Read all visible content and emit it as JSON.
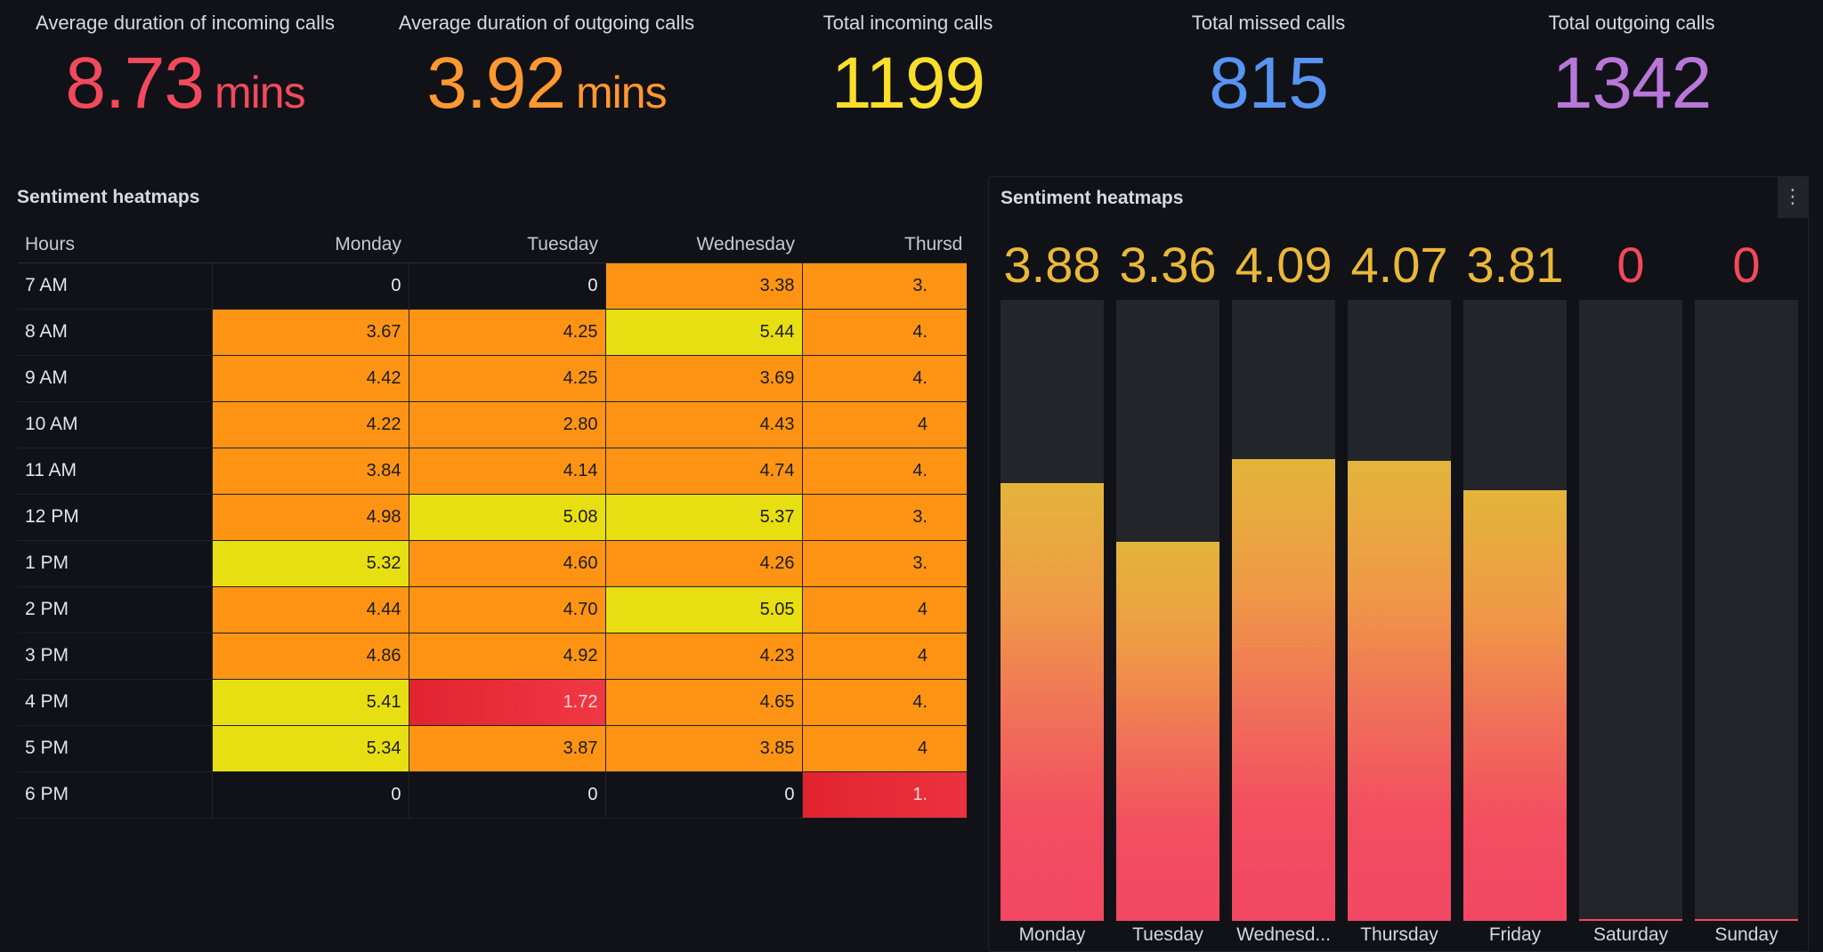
{
  "stats": [
    {
      "title": "Average duration of incoming calls",
      "value": "8.73",
      "unit": "mins",
      "color": "#f2495c"
    },
    {
      "title": "Average duration of outgoing calls",
      "value": "3.92",
      "unit": "mins",
      "color": "#ff9830"
    },
    {
      "title": "Total incoming calls",
      "value": "1199",
      "unit": "",
      "color": "#fade2a"
    },
    {
      "title": "Total missed calls",
      "value": "815",
      "unit": "",
      "color": "#5794f2"
    },
    {
      "title": "Total outgoing calls",
      "value": "1342",
      "unit": "",
      "color": "#b877d9"
    }
  ],
  "heatmap": {
    "title": "Sentiment heatmaps",
    "columns": [
      "Hours",
      "Monday",
      "Tuesday",
      "Wednesday",
      "Thursd"
    ],
    "rows": [
      {
        "hour": "7 AM",
        "values": [
          "0",
          "0",
          "3.38",
          "3."
        ]
      },
      {
        "hour": "8 AM",
        "values": [
          "3.67",
          "4.25",
          "5.44",
          "4."
        ]
      },
      {
        "hour": "9 AM",
        "values": [
          "4.42",
          "4.25",
          "3.69",
          "4."
        ]
      },
      {
        "hour": "10 AM",
        "values": [
          "4.22",
          "2.80",
          "4.43",
          "4"
        ]
      },
      {
        "hour": "11 AM",
        "values": [
          "3.84",
          "4.14",
          "4.74",
          "4."
        ]
      },
      {
        "hour": "12 PM",
        "values": [
          "4.98",
          "5.08",
          "5.37",
          "3."
        ]
      },
      {
        "hour": "1 PM",
        "values": [
          "5.32",
          "4.60",
          "4.26",
          "3."
        ]
      },
      {
        "hour": "2 PM",
        "values": [
          "4.44",
          "4.70",
          "5.05",
          "4"
        ]
      },
      {
        "hour": "3 PM",
        "values": [
          "4.86",
          "4.92",
          "4.23",
          "4"
        ]
      },
      {
        "hour": "4 PM",
        "values": [
          "5.41",
          "1.72",
          "4.65",
          "4."
        ]
      },
      {
        "hour": "5 PM",
        "values": [
          "5.34",
          "3.87",
          "3.85",
          "4"
        ]
      },
      {
        "hour": "6 PM",
        "values": [
          "0",
          "0",
          "0",
          "1."
        ]
      }
    ],
    "cell_classes": [
      [
        "zero",
        "zero",
        "orange",
        "orange"
      ],
      [
        "orange",
        "orange",
        "yellow",
        "orange"
      ],
      [
        "orange",
        "orange",
        "orange",
        "orange"
      ],
      [
        "orange",
        "orange",
        "orange",
        "orange"
      ],
      [
        "orange",
        "orange",
        "orange",
        "orange"
      ],
      [
        "orange",
        "yellow",
        "yellow",
        "orange"
      ],
      [
        "yellow",
        "orange",
        "orange",
        "orange"
      ],
      [
        "orange",
        "orange",
        "yellow",
        "orange"
      ],
      [
        "orange",
        "orange",
        "orange",
        "orange"
      ],
      [
        "yellow",
        "red",
        "orange",
        "orange"
      ],
      [
        "yellow",
        "orange",
        "orange",
        "orange"
      ],
      [
        "zero",
        "zero",
        "zero",
        "red"
      ]
    ]
  },
  "bars": {
    "title": "Sentiment heatmaps",
    "menu_icon": "⋮",
    "max": 5.5,
    "items": [
      {
        "label": "Monday",
        "value": "3.88",
        "color": "#eab839"
      },
      {
        "label": "Tuesday",
        "value": "3.36",
        "color": "#eab839"
      },
      {
        "label": "Wednesd...",
        "value": "4.09",
        "color": "#eab839"
      },
      {
        "label": "Thursday",
        "value": "4.07",
        "color": "#eab839"
      },
      {
        "label": "Friday",
        "value": "3.81",
        "color": "#eab839"
      },
      {
        "label": "Saturday",
        "value": "0",
        "color": "#f2495c"
      },
      {
        "label": "Sunday",
        "value": "0",
        "color": "#f2495c"
      }
    ]
  }
}
